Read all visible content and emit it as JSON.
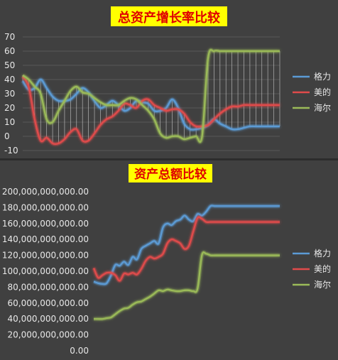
{
  "chart_data": [
    {
      "type": "line",
      "title": "总资产增长率比较",
      "ylim": [
        -10,
        70
      ],
      "yticks": [
        "70",
        "60",
        "50",
        "40",
        "30",
        "20",
        "10",
        "0",
        "-10"
      ],
      "grid": true,
      "legend": "right",
      "drop_lines": true,
      "x": [
        1,
        2,
        3,
        4,
        5,
        6,
        7,
        8,
        9,
        10,
        11,
        12,
        13,
        14,
        15,
        16,
        17,
        18,
        19,
        20,
        21,
        22,
        23,
        24,
        25,
        26,
        27,
        28,
        29,
        30,
        31,
        32,
        33,
        34,
        35,
        36,
        37,
        38,
        39,
        40,
        41,
        42,
        43,
        44
      ],
      "series": [
        {
          "name": "格力",
          "color": "#5b9bd5",
          "values": [
            39,
            33,
            34,
            40,
            34,
            28,
            25,
            25,
            26,
            30,
            34,
            31,
            25,
            20,
            22,
            25,
            22,
            18,
            20,
            25,
            24,
            23,
            18,
            18,
            20,
            26,
            20,
            9,
            5,
            5,
            6,
            8,
            12,
            9,
            7,
            5,
            5,
            6,
            7,
            7,
            7,
            7,
            7,
            7
          ]
        },
        {
          "name": "美的",
          "color": "#e04b4b",
          "values": [
            42,
            35,
            12,
            -3,
            -1,
            -5,
            -5,
            -2,
            3,
            5,
            -3,
            -3,
            2,
            8,
            12,
            14,
            18,
            23,
            22,
            20,
            25,
            26,
            22,
            20,
            18,
            19,
            19,
            16,
            10,
            7,
            7,
            8,
            12,
            16,
            19,
            21,
            21,
            22,
            22,
            22,
            22,
            22,
            22,
            22
          ]
        },
        {
          "name": "海尔",
          "color": "#9bbb59",
          "values": [
            43,
            40,
            35,
            30,
            12,
            10,
            18,
            25,
            32,
            35,
            31,
            30,
            27,
            24,
            22,
            22,
            22,
            25,
            27,
            26,
            22,
            18,
            12,
            2,
            -1,
            0,
            0,
            -2,
            -1,
            0,
            0,
            55,
            60,
            60,
            60,
            60,
            60,
            60,
            60,
            60,
            60,
            60,
            60,
            60
          ]
        }
      ]
    },
    {
      "type": "line",
      "title": "资产总额比较",
      "ylim": [
        0,
        200000000000
      ],
      "yticks": [
        "200,000,000,000.00",
        "180,000,000,000.00",
        "160,000,000,000.00",
        "140,000,000,000.00",
        "120,000,000,000.00",
        "100,000,000,000.00",
        "80,000,000,000.00",
        "60,000,000,000.00",
        "40,000,000,000.00",
        "20,000,000,000.00",
        "0.00"
      ],
      "grid": false,
      "legend": "right",
      "x": [
        1,
        2,
        3,
        4,
        5,
        6,
        7,
        8,
        9,
        10,
        11,
        12,
        13,
        14,
        15,
        16,
        17,
        18,
        19,
        20,
        21,
        22,
        23,
        24,
        25,
        26,
        27,
        28,
        29,
        30,
        31,
        32,
        33,
        34,
        35,
        36,
        37,
        38,
        39,
        40,
        41,
        42,
        43,
        44
      ],
      "series": [
        {
          "name": "格力",
          "color": "#5b9bd5",
          "values": [
            87000000000,
            85000000000,
            84000000000,
            85000000000,
            95000000000,
            108000000000,
            107000000000,
            112000000000,
            108000000000,
            118000000000,
            115000000000,
            128000000000,
            132000000000,
            135000000000,
            138000000000,
            135000000000,
            155000000000,
            160000000000,
            158000000000,
            163000000000,
            165000000000,
            170000000000,
            165000000000,
            163000000000,
            172000000000,
            170000000000,
            175000000000,
            182000000000,
            182000000000,
            182000000000,
            182000000000,
            182000000000,
            182000000000,
            182000000000,
            182000000000,
            182000000000,
            182000000000,
            182000000000,
            182000000000,
            182000000000,
            182000000000,
            182000000000,
            182000000000,
            182000000000
          ]
        },
        {
          "name": "美的",
          "color": "#e04b4b",
          "values": [
            104000000000,
            92000000000,
            95000000000,
            98000000000,
            98000000000,
            95000000000,
            88000000000,
            97000000000,
            96000000000,
            98000000000,
            96000000000,
            103000000000,
            113000000000,
            118000000000,
            116000000000,
            118000000000,
            122000000000,
            135000000000,
            140000000000,
            138000000000,
            135000000000,
            128000000000,
            132000000000,
            150000000000,
            167000000000,
            166000000000,
            162000000000,
            162000000000,
            162000000000,
            162000000000,
            162000000000,
            162000000000,
            162000000000,
            162000000000,
            162000000000,
            162000000000,
            162000000000,
            162000000000,
            162000000000,
            162000000000,
            162000000000,
            162000000000,
            162000000000,
            162000000000
          ]
        },
        {
          "name": "海尔",
          "color": "#9bbb59",
          "values": [
            40000000000,
            40000000000,
            40000000000,
            41000000000,
            42000000000,
            46000000000,
            50000000000,
            53000000000,
            54000000000,
            58000000000,
            61000000000,
            62000000000,
            65000000000,
            68000000000,
            72000000000,
            76000000000,
            75000000000,
            77000000000,
            76000000000,
            75000000000,
            75000000000,
            76000000000,
            76000000000,
            75000000000,
            78000000000,
            120000000000,
            122000000000,
            120000000000,
            120000000000,
            120000000000,
            120000000000,
            120000000000,
            120000000000,
            120000000000,
            120000000000,
            120000000000,
            120000000000,
            120000000000,
            120000000000,
            120000000000,
            120000000000,
            120000000000,
            120000000000,
            120000000000
          ]
        }
      ]
    }
  ]
}
